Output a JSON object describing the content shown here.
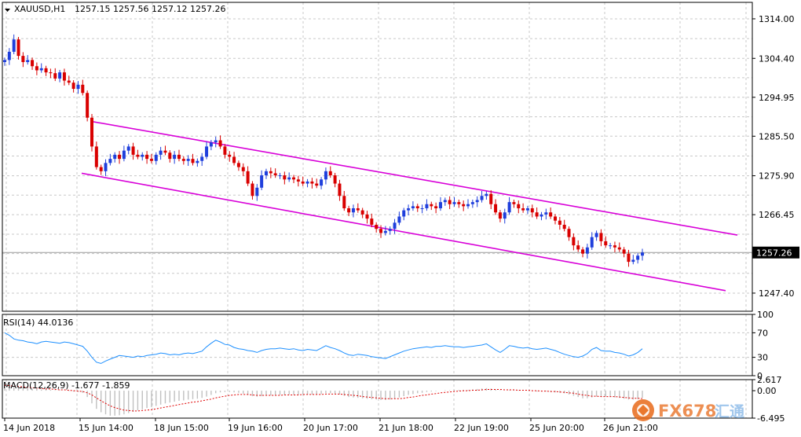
{
  "header": {
    "symbol_timeframe": "XAUUSD,H1",
    "ohlc": "1257.15 1257.56 1257.12 1257.26"
  },
  "colors": {
    "bull": "#1f3fdc",
    "bear": "#d90000",
    "channel": "#d800d8",
    "grid": "#c8c8c8",
    "rsi_line": "#1e90ff",
    "macd_hist": "#c0c0c0",
    "macd_signal": "#e00000",
    "price_tag_bg": "#000000",
    "price_tag_text": "#ffffff"
  },
  "chart_data": [
    {
      "type": "candlestick",
      "title": "XAUUSD,H1",
      "y_ticks": [
        "1314.00",
        "1304.40",
        "1294.95",
        "1285.50",
        "1275.90",
        "1266.45",
        "1257.26",
        "1247.40"
      ],
      "current_price": "1257.26",
      "ylim": [
        1243.0,
        1318.0
      ],
      "x_ticks": [
        "14 Jun 2018",
        "15 Jun 14:00",
        "18 Jun 15:00",
        "19 Jun 16:00",
        "20 Jun 17:00",
        "21 Jun 18:00",
        "22 Jun 19:00",
        "25 Jun 20:00",
        "26 Jun 21:00"
      ],
      "grid": true,
      "channel_upper": [
        [
          1289.0,
          1261.5
        ]
      ],
      "channel_lower": [
        [
          1276.5,
          1248.0
        ]
      ],
      "series": [
        {
          "name": "XAUUSD",
          "values": [
            1304.0,
            1306.0,
            1309.0,
            1305.0,
            1303.5,
            1304.0,
            1302.5,
            1301.5,
            1302.0,
            1301.0,
            1300.8,
            1299.5,
            1301.0,
            1299.0,
            1298.5,
            1297.0,
            1298.0,
            1296.0,
            1290.0,
            1283.0,
            1278.0,
            1277.0,
            1279.0,
            1280.0,
            1281.0,
            1280.0,
            1282.0,
            1283.0,
            1281.0,
            1280.5,
            1281.0,
            1280.0,
            1279.5,
            1281.0,
            1282.0,
            1281.5,
            1280.0,
            1281.0,
            1280.0,
            1279.5,
            1280.0,
            1279.0,
            1279.5,
            1280.5,
            1283.0,
            1284.0,
            1284.5,
            1283.0,
            1281.0,
            1280.5,
            1279.0,
            1278.0,
            1277.0,
            1274.0,
            1271.0,
            1273.0,
            1276.0,
            1277.0,
            1276.5,
            1276.0,
            1276.0,
            1275.0,
            1275.5,
            1275.0,
            1274.5,
            1274.0,
            1274.5,
            1274.0,
            1273.5,
            1275.0,
            1277.0,
            1276.0,
            1274.0,
            1271.0,
            1268.0,
            1267.0,
            1268.0,
            1267.5,
            1266.5,
            1265.5,
            1264.0,
            1263.0,
            1262.0,
            1262.5,
            1263.0,
            1264.5,
            1266.0,
            1267.5,
            1268.0,
            1268.5,
            1268.0,
            1268.0,
            1269.0,
            1268.5,
            1268.0,
            1269.5,
            1270.0,
            1269.0,
            1269.5,
            1269.0,
            1268.5,
            1269.0,
            1269.5,
            1270.0,
            1271.0,
            1271.5,
            1269.0,
            1267.0,
            1265.5,
            1267.0,
            1269.5,
            1269.0,
            1268.0,
            1267.5,
            1268.0,
            1267.0,
            1266.0,
            1266.5,
            1267.0,
            1266.0,
            1265.0,
            1264.0,
            1263.0,
            1261.0,
            1259.0,
            1258.0,
            1257.0,
            1258.5,
            1261.0,
            1262.0,
            1260.0,
            1259.0,
            1259.0,
            1258.5,
            1258.0,
            1257.0,
            1255.0,
            1255.5,
            1256.5,
            1257.26
          ]
        }
      ],
      "sma_note": ""
    },
    {
      "type": "line",
      "title": "RSI(14) 44.0136",
      "y_ticks": [
        "100",
        "70",
        "30",
        "0"
      ],
      "ylim": [
        0,
        100
      ],
      "series": [
        {
          "name": "RSI(14)",
          "values": [
            70,
            66,
            60,
            58,
            57,
            55,
            54,
            52,
            55,
            56,
            55,
            54,
            53,
            55,
            54,
            52,
            50,
            48,
            40,
            30,
            22,
            20,
            24,
            27,
            30,
            33,
            32,
            31,
            30,
            32,
            31,
            33,
            34,
            35,
            37,
            36,
            34,
            35,
            34,
            36,
            37,
            36,
            38,
            40,
            47,
            53,
            58,
            55,
            51,
            50,
            46,
            44,
            43,
            41,
            40,
            38,
            41,
            43,
            44,
            44,
            45,
            44,
            43,
            44,
            42,
            41,
            43,
            42,
            41,
            45,
            49,
            46,
            44,
            41,
            37,
            34,
            33,
            35,
            34,
            33,
            31,
            30,
            29,
            28,
            31,
            34,
            37,
            40,
            42,
            44,
            45,
            46,
            47,
            46,
            48,
            48,
            49,
            48,
            47,
            47,
            46,
            47,
            48,
            49,
            50,
            52,
            47,
            42,
            38,
            43,
            49,
            48,
            46,
            45,
            46,
            44,
            43,
            44,
            45,
            43,
            41,
            38,
            35,
            33,
            31,
            30,
            32,
            36,
            43,
            46,
            41,
            40,
            40,
            38,
            37,
            35,
            32,
            34,
            38,
            44
          ]
        }
      ]
    },
    {
      "type": "line",
      "title": "MACD(12,26,9) -1.677 -1.859",
      "y_ticks": [
        "2.617",
        "0.00",
        "-6.495"
      ],
      "ylim": [
        -6.495,
        2.617
      ],
      "series": [
        {
          "name": "MACD",
          "values": [
            1.2,
            1.1,
            1.0,
            0.9,
            0.8,
            0.6,
            0.5,
            0.4,
            0.3,
            0.3,
            0.2,
            0.1,
            0.1,
            0.0,
            -0.1,
            -0.2,
            -0.3,
            -0.5,
            -1.5,
            -3.0,
            -4.3,
            -5.1,
            -5.6,
            -5.9,
            -5.9,
            -5.8,
            -5.6,
            -5.3,
            -5.0,
            -4.7,
            -4.4,
            -4.1,
            -3.9,
            -3.6,
            -3.3,
            -3.0,
            -2.8,
            -2.6,
            -2.4,
            -2.3,
            -2.1,
            -2.0,
            -1.9,
            -1.7,
            -1.4,
            -1.0,
            -0.6,
            -0.4,
            -0.3,
            -0.3,
            -0.4,
            -0.5,
            -0.7,
            -1.0,
            -1.3,
            -1.4,
            -1.3,
            -1.2,
            -1.1,
            -1.0,
            -1.0,
            -1.0,
            -0.9,
            -0.9,
            -0.9,
            -0.9,
            -0.9,
            -0.9,
            -0.9,
            -0.8,
            -0.6,
            -0.6,
            -0.7,
            -0.9,
            -1.2,
            -1.5,
            -1.6,
            -1.7,
            -1.8,
            -1.9,
            -2.0,
            -2.1,
            -2.2,
            -2.2,
            -2.1,
            -1.9,
            -1.6,
            -1.3,
            -1.0,
            -0.8,
            -0.6,
            -0.5,
            -0.3,
            -0.2,
            -0.1,
            0.0,
            0.1,
            0.1,
            0.2,
            0.2,
            0.2,
            0.2,
            0.3,
            0.4,
            0.5,
            0.6,
            0.5,
            0.3,
            0.1,
            0.0,
            0.1,
            0.1,
            0.1,
            0.0,
            0.0,
            -0.1,
            -0.2,
            -0.2,
            -0.2,
            -0.3,
            -0.4,
            -0.5,
            -0.6,
            -0.9,
            -1.2,
            -1.5,
            -1.8,
            -1.8,
            -1.6,
            -1.4,
            -1.4,
            -1.4,
            -1.5,
            -1.6,
            -1.7,
            -1.9,
            -2.1,
            -2.1,
            -2.0,
            -1.677
          ]
        },
        {
          "name": "Signal",
          "values": [
            1.3,
            1.2,
            1.1,
            1.0,
            0.9,
            0.8,
            0.7,
            0.6,
            0.5,
            0.4,
            0.4,
            0.3,
            0.2,
            0.2,
            0.1,
            0.0,
            -0.1,
            -0.2,
            -0.5,
            -1.0,
            -1.7,
            -2.4,
            -3.0,
            -3.6,
            -4.0,
            -4.3,
            -4.6,
            -4.7,
            -4.8,
            -4.8,
            -4.7,
            -4.6,
            -4.5,
            -4.3,
            -4.1,
            -3.9,
            -3.7,
            -3.5,
            -3.3,
            -3.1,
            -2.9,
            -2.7,
            -2.6,
            -2.4,
            -2.2,
            -2.0,
            -1.7,
            -1.5,
            -1.3,
            -1.1,
            -1.0,
            -0.9,
            -0.9,
            -0.9,
            -1.0,
            -1.1,
            -1.1,
            -1.1,
            -1.1,
            -1.1,
            -1.1,
            -1.0,
            -1.0,
            -1.0,
            -1.0,
            -0.9,
            -0.9,
            -0.9,
            -0.9,
            -0.9,
            -0.8,
            -0.8,
            -0.8,
            -0.8,
            -0.9,
            -1.0,
            -1.1,
            -1.2,
            -1.4,
            -1.5,
            -1.6,
            -1.7,
            -1.8,
            -1.9,
            -1.9,
            -1.9,
            -1.9,
            -1.8,
            -1.6,
            -1.5,
            -1.3,
            -1.1,
            -1.0,
            -0.8,
            -0.7,
            -0.5,
            -0.4,
            -0.3,
            -0.2,
            -0.1,
            0.0,
            0.0,
            0.1,
            0.1,
            0.2,
            0.3,
            0.3,
            0.3,
            0.3,
            0.2,
            0.2,
            0.2,
            0.1,
            0.1,
            0.1,
            0.0,
            0.0,
            -0.1,
            -0.1,
            -0.2,
            -0.2,
            -0.3,
            -0.4,
            -0.5,
            -0.6,
            -0.8,
            -1.0,
            -1.1,
            -1.3,
            -1.3,
            -1.4,
            -1.4,
            -1.4,
            -1.4,
            -1.5,
            -1.6,
            -1.7,
            -1.8,
            -1.8,
            -1.859
          ]
        }
      ]
    }
  ]
}
